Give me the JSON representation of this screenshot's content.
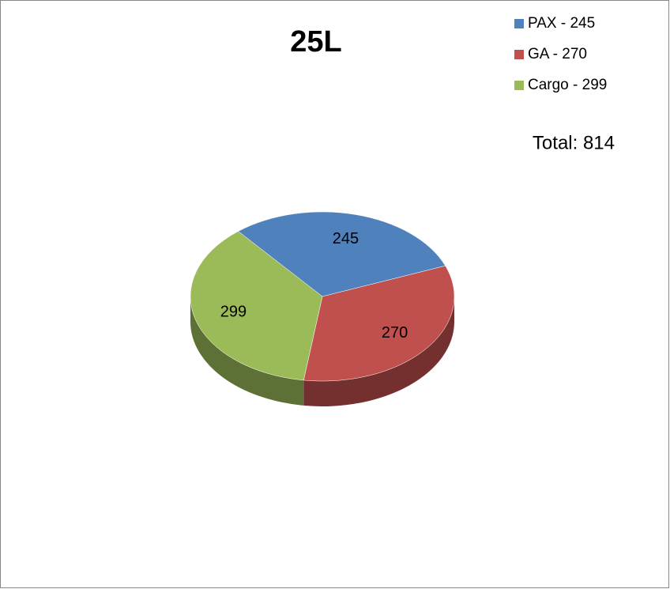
{
  "chart_data": {
    "type": "pie",
    "title": "25L",
    "categories": [
      "PAX - 245",
      "GA - 270",
      "Cargo - 299"
    ],
    "values": [
      245,
      270,
      299
    ],
    "colors": [
      "#4f81bd",
      "#c0504d",
      "#9bbb59"
    ],
    "annotation": "Total: 814",
    "legend": "top-right"
  }
}
